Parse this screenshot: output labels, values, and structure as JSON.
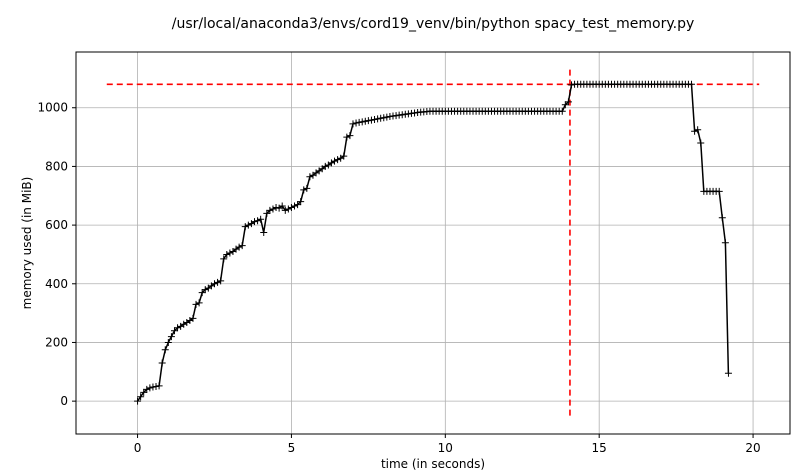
{
  "chart_data": {
    "type": "line",
    "title": "/usr/local/anaconda3/envs/cord19_venv/bin/python spacy_test_memory.py",
    "xlabel": "time (in seconds)",
    "ylabel": "memory used (in MiB)",
    "xlim": [
      -2,
      21.2
    ],
    "ylim": [
      -112,
      1190
    ],
    "xticks": [
      0,
      5,
      10,
      15,
      20
    ],
    "yticks": [
      0,
      200,
      400,
      600,
      800,
      1000
    ],
    "grid": true,
    "colors": {
      "line": "#000000",
      "max_marker": "#ff0000"
    },
    "max_memory": {
      "time": 14.05,
      "value": 1080,
      "xrange": [
        -1,
        20.2
      ]
    },
    "series": [
      {
        "marker": "+",
        "x": [
          0.0,
          0.1,
          0.2,
          0.3,
          0.4,
          0.5,
          0.6,
          0.7,
          0.8,
          0.9,
          1.0,
          1.1,
          1.2,
          1.3,
          1.4,
          1.5,
          1.6,
          1.7,
          1.8,
          1.9,
          2.0,
          2.1,
          2.2,
          2.3,
          2.4,
          2.5,
          2.6,
          2.7,
          2.8,
          2.9,
          3.0,
          3.1,
          3.2,
          3.3,
          3.4,
          3.5,
          3.6,
          3.7,
          3.8,
          3.9,
          4.0,
          4.1,
          4.2,
          4.3,
          4.4,
          4.5,
          4.6,
          4.7,
          4.8,
          4.9,
          5.0,
          5.1,
          5.2,
          5.3,
          5.4,
          5.5,
          5.6,
          5.7,
          5.8,
          5.9,
          6.0,
          6.1,
          6.2,
          6.3,
          6.4,
          6.5,
          6.6,
          6.7,
          6.8,
          6.9,
          7.0,
          7.1,
          7.2,
          7.3,
          7.4,
          7.5,
          7.6,
          7.7,
          7.8,
          7.9,
          8.0,
          8.1,
          8.2,
          8.3,
          8.4,
          8.5,
          8.6,
          8.7,
          8.8,
          8.9,
          9.0,
          9.1,
          9.2,
          9.3,
          9.4,
          9.5,
          9.6,
          9.7,
          9.8,
          9.9,
          10.0,
          10.1,
          10.2,
          10.3,
          10.4,
          10.5,
          10.6,
          10.7,
          10.8,
          10.9,
          11.0,
          11.1,
          11.2,
          11.3,
          11.4,
          11.5,
          11.6,
          11.7,
          11.8,
          11.9,
          12.0,
          12.1,
          12.2,
          12.3,
          12.4,
          12.5,
          12.6,
          12.7,
          12.8,
          12.9,
          13.0,
          13.1,
          13.2,
          13.3,
          13.4,
          13.5,
          13.6,
          13.7,
          13.8,
          13.9,
          14.0,
          14.1,
          14.2,
          14.3,
          14.4,
          14.5,
          14.6,
          14.7,
          14.8,
          14.9,
          15.0,
          15.1,
          15.2,
          15.3,
          15.4,
          15.5,
          15.6,
          15.7,
          15.8,
          15.9,
          16.0,
          16.1,
          16.2,
          16.3,
          16.4,
          16.5,
          16.6,
          16.7,
          16.8,
          16.9,
          17.0,
          17.1,
          17.2,
          17.3,
          17.4,
          17.5,
          17.6,
          17.7,
          17.8,
          17.9,
          18.0,
          18.1,
          18.2,
          18.3,
          18.4,
          18.5,
          18.6,
          18.7,
          18.8,
          18.9,
          19.0,
          19.1,
          19.2
        ],
        "y": [
          0,
          15,
          30,
          40,
          45,
          48,
          50,
          52,
          130,
          175,
          200,
          220,
          240,
          250,
          255,
          262,
          268,
          275,
          282,
          330,
          335,
          370,
          380,
          385,
          393,
          400,
          405,
          410,
          485,
          500,
          505,
          510,
          518,
          525,
          530,
          595,
          600,
          605,
          612,
          615,
          620,
          575,
          640,
          650,
          655,
          660,
          658,
          665,
          650,
          655,
          660,
          665,
          670,
          680,
          720,
          725,
          765,
          770,
          778,
          785,
          792,
          800,
          805,
          812,
          818,
          823,
          828,
          835,
          900,
          905,
          945,
          948,
          950,
          952,
          954,
          956,
          958,
          960,
          962,
          964,
          966,
          968,
          970,
          972,
          973,
          975,
          976,
          978,
          979,
          981,
          982,
          984,
          985,
          986,
          987,
          988,
          988,
          988,
          988,
          988,
          988,
          988,
          988,
          988,
          988,
          988,
          988,
          988,
          988,
          988,
          988,
          988,
          988,
          988,
          988,
          988,
          988,
          988,
          988,
          988,
          988,
          988,
          988,
          988,
          988,
          988,
          988,
          988,
          988,
          988,
          988,
          988,
          988,
          988,
          988,
          988,
          988,
          988,
          988,
          1010,
          1020,
          1078,
          1080,
          1080,
          1080,
          1080,
          1080,
          1080,
          1080,
          1080,
          1080,
          1080,
          1080,
          1080,
          1080,
          1080,
          1080,
          1080,
          1080,
          1080,
          1080,
          1080,
          1080,
          1080,
          1080,
          1080,
          1080,
          1080,
          1080,
          1080,
          1080,
          1080,
          1080,
          1080,
          1080,
          1080,
          1080,
          1080,
          1080,
          1080,
          1080,
          920,
          925,
          880,
          715,
          715,
          715,
          715,
          715,
          715,
          625,
          540,
          95
        ]
      }
    ]
  }
}
